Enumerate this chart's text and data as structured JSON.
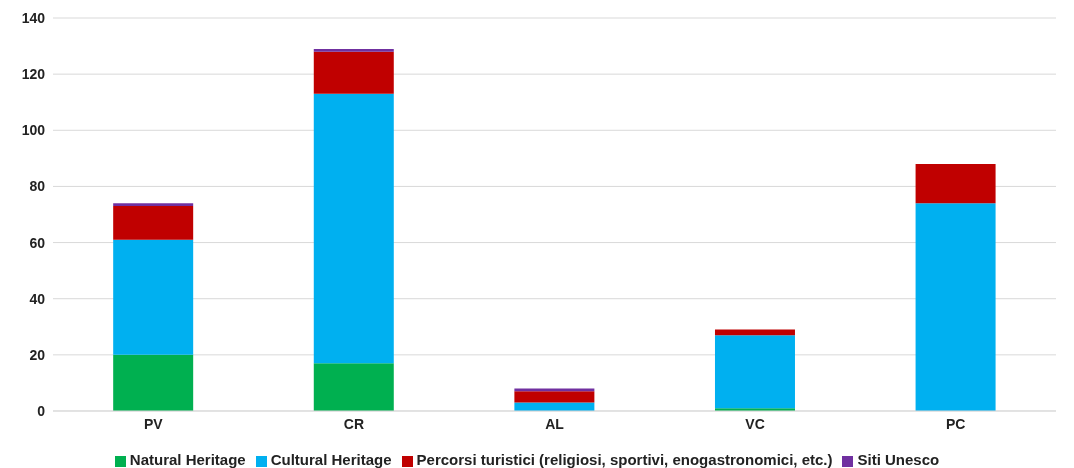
{
  "chart_data": {
    "type": "bar",
    "stacked": true,
    "categories": [
      "PV",
      "CR",
      "AL",
      "VC",
      "PC"
    ],
    "series": [
      {
        "name": "Natural Heritage",
        "color": "#00b050",
        "values": [
          20,
          17,
          0,
          1,
          0
        ]
      },
      {
        "name": "Cultural Heritage",
        "color": "#00b0f0",
        "values": [
          41,
          96,
          3,
          26,
          74
        ]
      },
      {
        "name": "Percorsi turistici (religiosi, sportivi, enogastronomici, etc.)",
        "color": "#c00000",
        "values": [
          12,
          15,
          4,
          2,
          14
        ]
      },
      {
        "name": "Siti Unesco",
        "color": "#7030a0",
        "values": [
          1,
          1,
          1,
          0,
          0
        ]
      }
    ],
    "ylim": [
      0,
      140
    ],
    "yticks": [
      0,
      20,
      40,
      60,
      80,
      100,
      120,
      140
    ],
    "grid": "y",
    "legend": "bottom"
  }
}
